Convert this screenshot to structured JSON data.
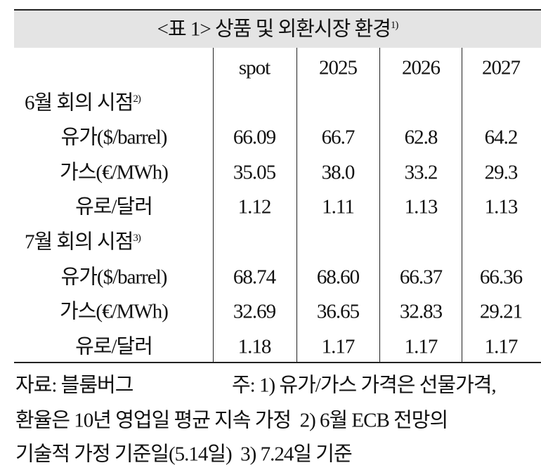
{
  "title": {
    "text": "<표 1> 상품 및 외환시장 환경",
    "note": "1)"
  },
  "table": {
    "header": [
      "spot",
      "2025",
      "2026",
      "2027"
    ],
    "sections": [
      {
        "label": "6월 회의 시점",
        "note": "2)",
        "rows": [
          {
            "label": "유가($/barrel)",
            "values": [
              "66.09",
              "66.7",
              "62.8",
              "64.2"
            ]
          },
          {
            "label": "가스(€/MWh)",
            "values": [
              "35.05",
              "38.0",
              "33.2",
              "29.3"
            ]
          },
          {
            "label": "유로/달러",
            "values": [
              "1.12",
              "1.11",
              "1.13",
              "1.13"
            ]
          }
        ]
      },
      {
        "label": "7월 회의 시점",
        "note": "3)",
        "rows": [
          {
            "label": "유가($/barrel)",
            "values": [
              "68.74",
              "68.60",
              "66.37",
              "66.36"
            ]
          },
          {
            "label": "가스(€/MWh)",
            "values": [
              "32.69",
              "36.65",
              "32.83",
              "29.21"
            ]
          },
          {
            "label": "유로/달러",
            "values": [
              "1.18",
              "1.17",
              "1.17",
              "1.17"
            ]
          }
        ]
      }
    ]
  },
  "footer": {
    "source": "자료: 블룸버그",
    "lines": [
      "주: 1) 유가/가스 가격은 선물가격,",
      "환율은 10년 영업일 평균 지속 가정  2) 6월 ECB 전망의",
      "기술적 가정 기준일(5.14일)  3) 7.24일 기준"
    ]
  }
}
